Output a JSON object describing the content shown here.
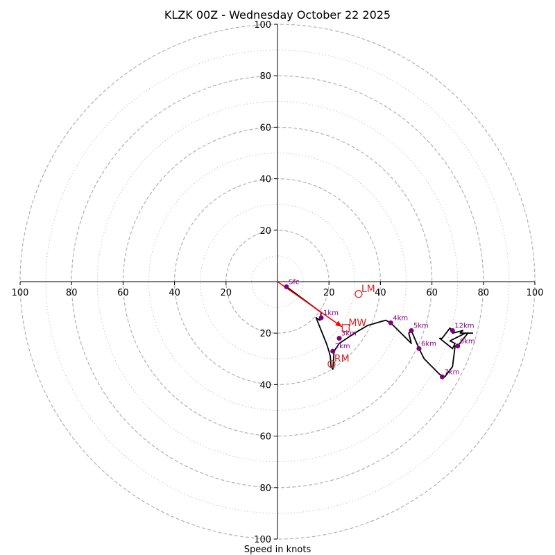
{
  "chart_data": {
    "type": "hodograph",
    "title": "KLZK 00Z - Wednesday October 22 2025",
    "xlabel": "Speed in knots",
    "xlim": [
      -100,
      100
    ],
    "ylim": [
      -100,
      100
    ],
    "ticks": [
      20,
      40,
      60,
      80,
      100
    ],
    "tick_labels": [
      "20",
      "40",
      "60",
      "80",
      "100"
    ],
    "major_rings": [
      20,
      40,
      60,
      80,
      100
    ],
    "minor_rings": [
      10,
      30,
      50,
      70,
      90
    ],
    "hodograph": {
      "u": [
        3.5,
        17,
        16.5,
        15,
        19,
        20,
        20.5,
        20.8,
        21.5,
        22,
        24,
        30,
        35,
        42,
        44,
        52,
        51,
        52,
        55,
        57,
        63,
        65,
        68,
        69,
        70,
        74,
        73,
        71,
        67,
        69,
        68,
        63,
        64,
        67,
        68,
        72,
        71,
        76
      ],
      "v": [
        -2,
        -12,
        -15,
        -14,
        -24,
        -27,
        -29,
        -33,
        -34,
        -27,
        -24,
        -20,
        -17,
        -15,
        -16,
        -24,
        -20,
        -19,
        -26,
        -30,
        -36,
        -37,
        -33,
        -25,
        -25,
        -20,
        -20,
        -21,
        -23,
        -24,
        -26,
        -22,
        -22,
        -18,
        -20,
        -19,
        -20,
        -20
      ]
    },
    "height_markers": [
      {
        "label": "Sfc",
        "u": 3.5,
        "v": -2
      },
      {
        "label": "1km",
        "u": 17,
        "v": -14
      },
      {
        "label": "2km",
        "u": 21.5,
        "v": -27
      },
      {
        "label": "3km",
        "u": 24,
        "v": -22
      },
      {
        "label": "4km",
        "u": 44,
        "v": -16
      },
      {
        "label": "5km",
        "u": 52,
        "v": -19
      },
      {
        "label": "6km",
        "u": 55,
        "v": -26
      },
      {
        "label": "7km",
        "u": 64,
        "v": -37
      },
      {
        "label": "8km",
        "u": 70,
        "v": -25
      },
      {
        "label": "12km",
        "u": 68,
        "v": -19
      }
    ],
    "shear_vector": {
      "from": [
        0,
        0
      ],
      "to": [
        25,
        -17.5
      ],
      "color": "#ff0000"
    },
    "storm_motion": [
      {
        "label": "LM",
        "u": 31.5,
        "v": -4.8,
        "symbol": "circle"
      },
      {
        "label": "MW",
        "u": 26.5,
        "v": -18,
        "symbol": "square"
      },
      {
        "label": "RM",
        "u": 21,
        "v": -32,
        "symbol": "circle"
      }
    ],
    "colors": {
      "trace": "#000000",
      "marker": "#800080",
      "storm": "#d62728",
      "shear": "#ff0000",
      "ring": "#b0b0b0"
    }
  }
}
